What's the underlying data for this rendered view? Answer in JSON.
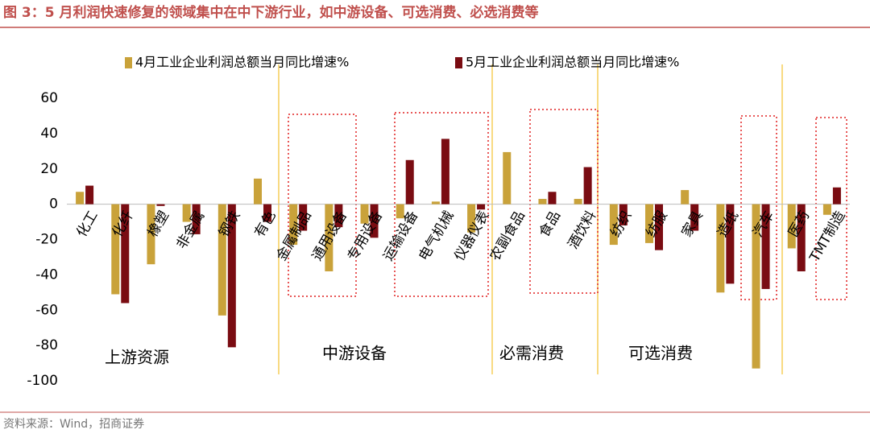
{
  "chart_data": {
    "type": "bar",
    "title": "图 3：5 月利润快速修复的领域集中在中下游行业，如中游设备、可选消费、必选消费等",
    "source": "资料来源：Wind，招商证券",
    "categories": [
      "化工",
      "化纤",
      "橡塑",
      "非金属",
      "钢铁",
      "有色",
      "金属制品",
      "通用设备",
      "专用设备",
      "运输设备",
      "电气机械",
      "仪器仪表",
      "农副食品",
      "食品",
      "酒饮料",
      "纺织",
      "纺服",
      "家具",
      "造纸",
      "汽车",
      "医药",
      "TMT制造"
    ],
    "series": [
      {
        "name": "4月工业企业利润总额当月同比增速%",
        "color": "#C9A23A",
        "values": [
          7,
          -51,
          -34,
          -10,
          -63,
          14.5,
          -23,
          -38,
          -11,
          -8,
          1.5,
          -16,
          29.5,
          3,
          3,
          -23,
          -22,
          8,
          -50,
          -93,
          -25,
          -6
        ]
      },
      {
        "name": "5月工业企业利润总额当月同比增速%",
        "color": "#7A0C12",
        "values": [
          10.5,
          -56,
          -1,
          -17,
          -81,
          -10,
          -15,
          -13,
          -19,
          25,
          37,
          -3,
          0,
          7,
          21,
          -12,
          -26,
          -15,
          -45,
          -48,
          -38,
          9.5
        ]
      }
    ],
    "group_labels": [
      "上游资源",
      "中游设备",
      "必需消费",
      "可选消费"
    ],
    "ylim": [
      -100,
      60
    ],
    "yticks": [
      -100,
      -80,
      -60,
      -40,
      -20,
      0,
      20,
      40,
      60
    ],
    "grid": false
  }
}
